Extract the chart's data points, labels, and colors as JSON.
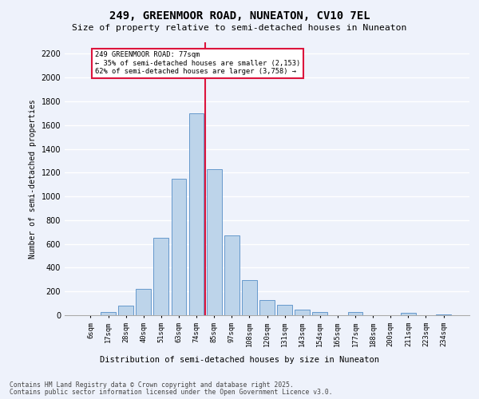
{
  "title_line1": "249, GREENMOOR ROAD, NUNEATON, CV10 7EL",
  "title_line2": "Size of property relative to semi-detached houses in Nuneaton",
  "xlabel": "Distribution of semi-detached houses by size in Nuneaton",
  "ylabel": "Number of semi-detached properties",
  "categories": [
    "6sqm",
    "17sqm",
    "28sqm",
    "40sqm",
    "51sqm",
    "63sqm",
    "74sqm",
    "85sqm",
    "97sqm",
    "108sqm",
    "120sqm",
    "131sqm",
    "143sqm",
    "154sqm",
    "165sqm",
    "177sqm",
    "188sqm",
    "200sqm",
    "211sqm",
    "223sqm",
    "234sqm"
  ],
  "values": [
    0,
    25,
    80,
    220,
    650,
    1150,
    1700,
    1230,
    670,
    295,
    130,
    90,
    50,
    30,
    0,
    30,
    0,
    0,
    20,
    0,
    10
  ],
  "bar_color": "#bdd4ea",
  "bar_edge_color": "#6699cc",
  "vline_index": 6,
  "annotation_text_line1": "249 GREENMOOR ROAD: 77sqm",
  "annotation_text_line2": "← 35% of semi-detached houses are smaller (2,153)",
  "annotation_text_line3": "62% of semi-detached houses are larger (3,758) →",
  "ylim": [
    0,
    2300
  ],
  "yticks": [
    0,
    200,
    400,
    600,
    800,
    1000,
    1200,
    1400,
    1600,
    1800,
    2000,
    2200
  ],
  "footer_line1": "Contains HM Land Registry data © Crown copyright and database right 2025.",
  "footer_line2": "Contains public sector information licensed under the Open Government Licence v3.0.",
  "bg_color": "#eef2fb",
  "grid_color": "#ffffff"
}
